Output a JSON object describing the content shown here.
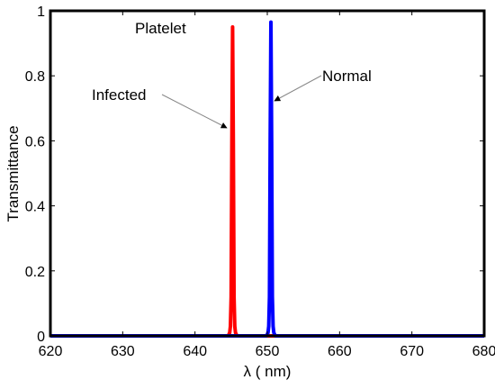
{
  "colors": {
    "infected": "#ff0000",
    "normal": "#0000ff",
    "axis": "#000000",
    "arrow": "#888888"
  },
  "chart_data": {
    "type": "line",
    "title": "",
    "xlabel": "λ ( nm)",
    "ylabel": "Transmittance",
    "xlim": [
      620,
      680
    ],
    "ylim": [
      0,
      1
    ],
    "xticks": [
      620,
      630,
      640,
      650,
      660,
      670,
      680
    ],
    "yticks": [
      0,
      0.2,
      0.4,
      0.6,
      0.8,
      1
    ],
    "ytick_labels": [
      "0",
      "0.2",
      "0.4",
      "0.6",
      "0.8",
      "1"
    ],
    "grid": false,
    "legend": "none",
    "series": [
      {
        "name": "Infected",
        "color": "#ff0000",
        "peak_wavelength": 645.2,
        "peak_transmittance": 0.95,
        "x": [
          620,
          644.6,
          644.8,
          644.9,
          645.0,
          645.1,
          645.2,
          645.3,
          645.4,
          645.5,
          645.6,
          645.8,
          680
        ],
        "y": [
          0,
          0.0,
          0.01,
          0.03,
          0.12,
          0.6,
          0.95,
          0.6,
          0.12,
          0.03,
          0.01,
          0.0,
          0
        ]
      },
      {
        "name": "Normal",
        "color": "#0000ff",
        "peak_wavelength": 650.5,
        "peak_transmittance": 0.965,
        "x": [
          620,
          649.9,
          650.1,
          650.2,
          650.3,
          650.4,
          650.5,
          650.6,
          650.7,
          650.8,
          650.9,
          651.1,
          680
        ],
        "y": [
          0,
          0.0,
          0.01,
          0.03,
          0.12,
          0.6,
          0.965,
          0.6,
          0.12,
          0.03,
          0.01,
          0.0,
          0
        ]
      }
    ],
    "annotations": [
      {
        "id": "platelet",
        "text": "Platelet"
      },
      {
        "id": "infected",
        "text": "Infected"
      },
      {
        "id": "normal",
        "text": "Normal"
      }
    ]
  }
}
